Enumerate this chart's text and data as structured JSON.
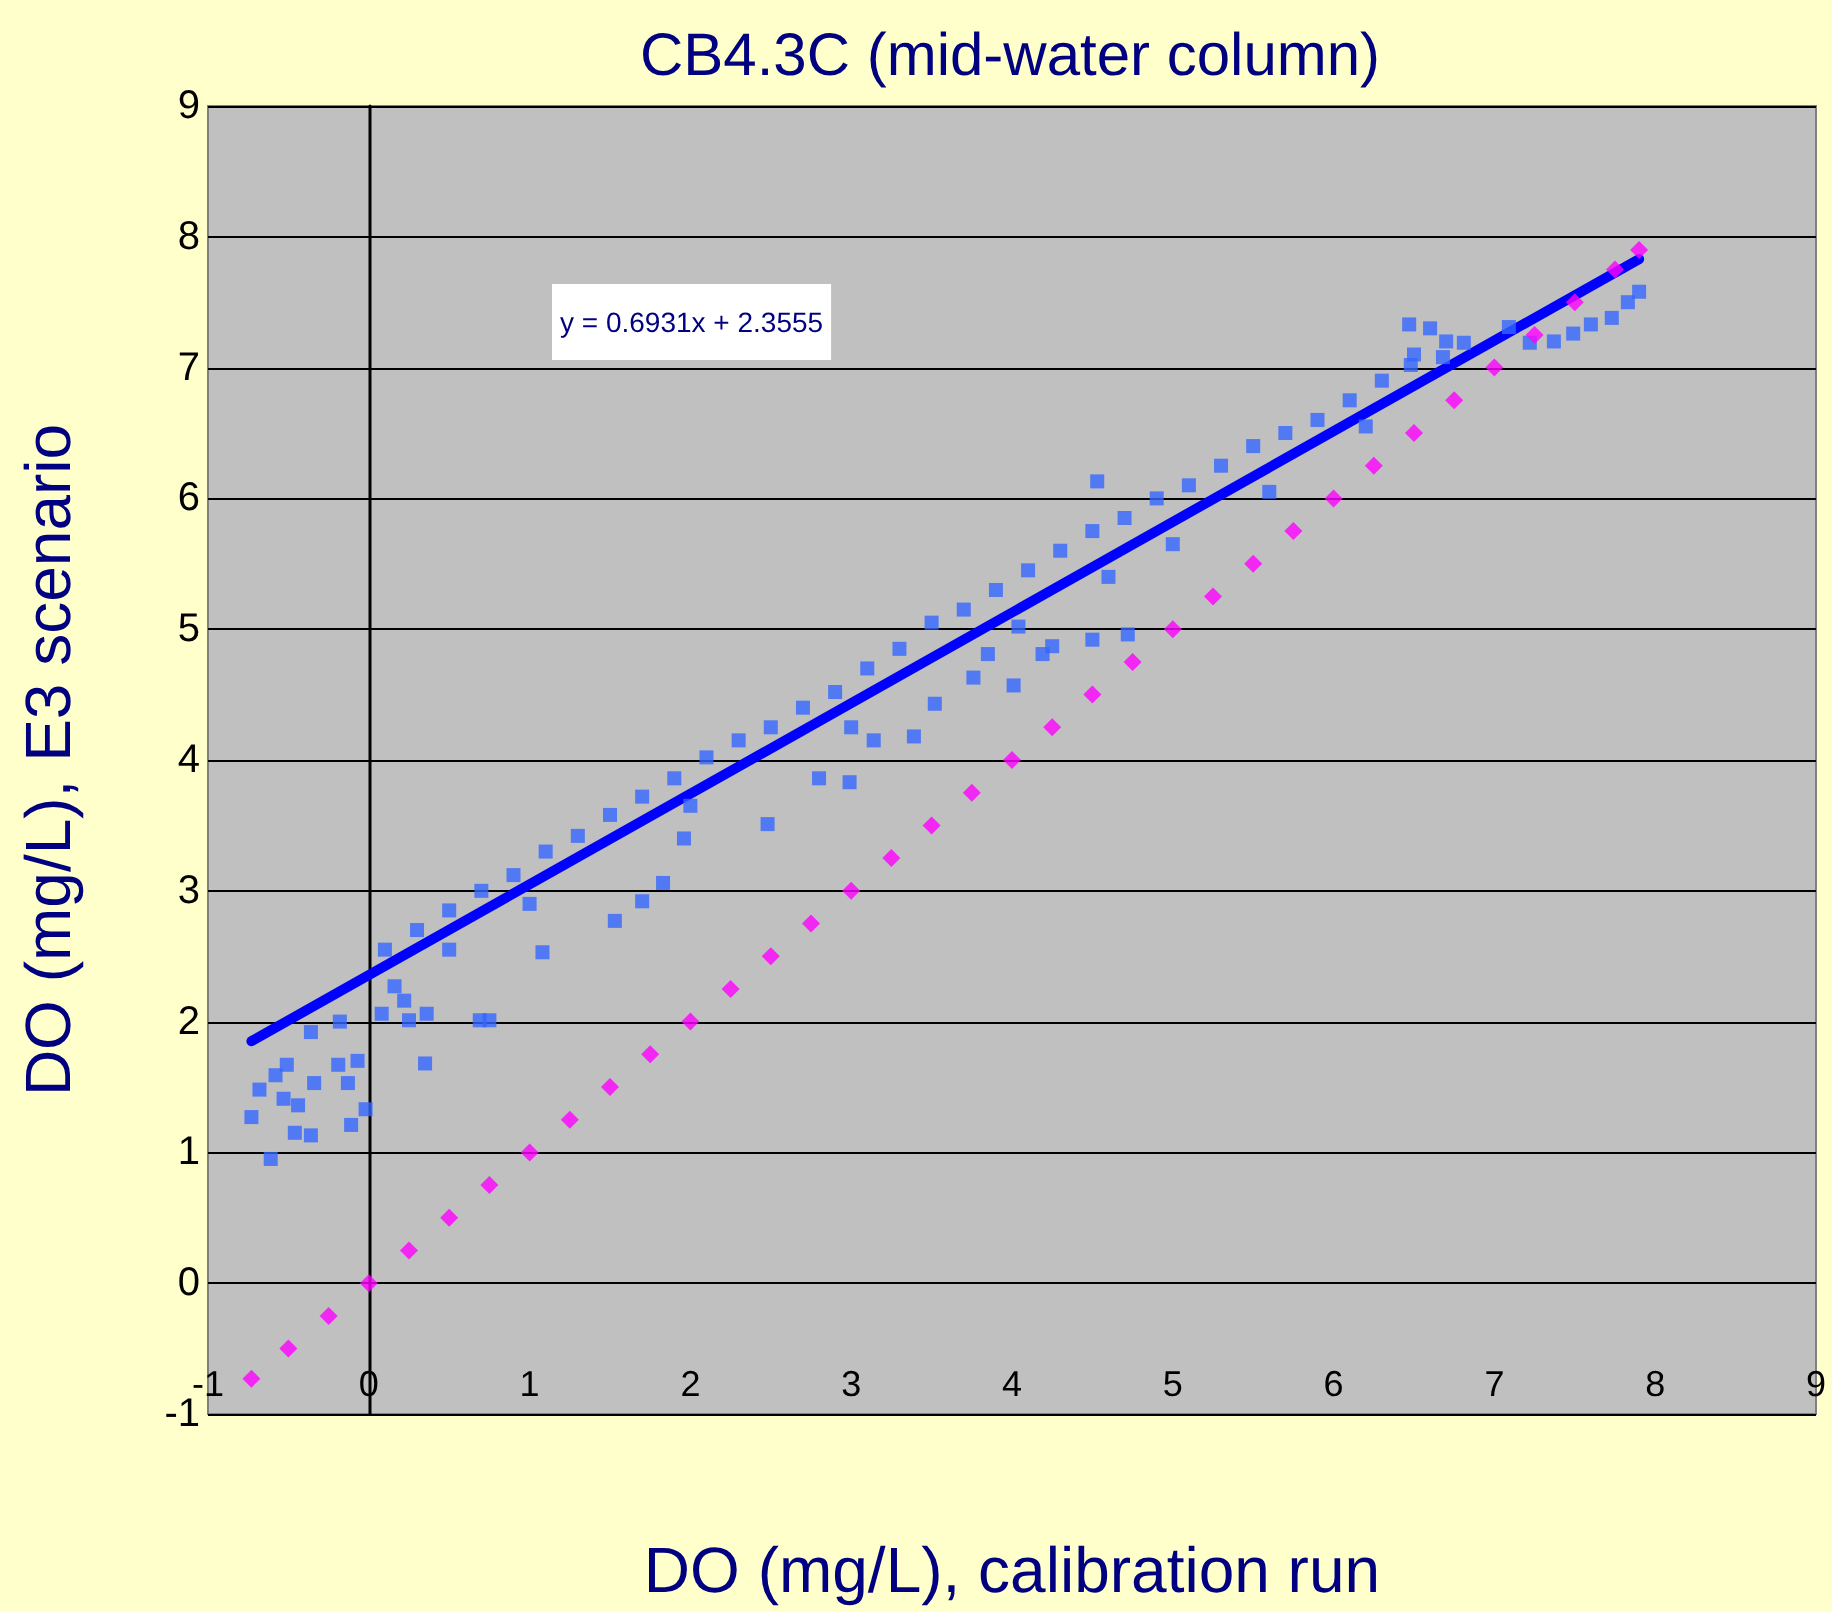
{
  "chart_data": {
    "type": "scatter",
    "title": "CB4.3C (mid-water column)",
    "xlabel": "DO (mg/L), calibration run",
    "ylabel": "DO (mg/L), E3 scenario",
    "annotations": [
      "y = 0.6931x + 2.3555"
    ],
    "xlim": [
      -1,
      9
    ],
    "xticks": [
      -1,
      0,
      1,
      2,
      3,
      4,
      5,
      6,
      7,
      8,
      9
    ],
    "ylim": [
      -1,
      9
    ],
    "yticks": [
      -1,
      0,
      1,
      2,
      3,
      4,
      5,
      6,
      7,
      8,
      9
    ],
    "grid": "y",
    "series": [
      {
        "color": "#3366ff",
        "marker": "square",
        "x": [
          -0.73,
          -0.61,
          -0.68,
          -0.58,
          -0.51,
          -0.53,
          -0.44,
          -0.46,
          -0.36,
          -0.34,
          -0.36,
          -0.19,
          -0.18,
          -0.13,
          -0.11,
          -0.02,
          -0.07,
          0.08,
          0.16,
          0.22,
          0.25,
          0.35,
          0.36,
          0.69,
          0.75,
          1.08,
          1.53,
          1.7,
          1.83,
          1.96,
          2.48,
          2.8,
          2.99,
          3.14,
          3.39,
          3.52,
          3.76,
          3.85,
          4.04,
          4.01,
          4.19,
          4.25,
          4.5,
          4.72,
          7.9,
          7.83,
          7.73,
          7.6,
          7.49,
          7.37,
          7.22,
          7.09,
          6.81,
          6.68,
          6.47,
          6.48,
          0.1,
          0.3,
          0.5,
          0.7,
          0.9,
          1.1,
          1.3,
          1.5,
          1.7,
          1.9,
          2.1,
          2.3,
          2.5,
          2.7,
          2.9,
          3.1,
          3.3,
          3.5,
          3.7,
          3.9,
          4.1,
          4.3,
          4.5,
          4.7,
          4.9,
          5.1,
          5.3,
          5.5,
          5.7,
          5.9,
          6.1,
          6.3,
          6.5,
          6.7,
          2.0,
          3.0,
          4.6,
          5.6,
          6.2,
          5.0,
          1.0,
          0.5,
          4.53,
          6.6
        ],
        "values": [
          1.27,
          0.95,
          1.48,
          1.59,
          1.67,
          1.41,
          1.36,
          1.15,
          1.13,
          1.53,
          1.92,
          1.67,
          2.0,
          1.53,
          1.21,
          1.33,
          1.7,
          2.06,
          2.27,
          2.16,
          2.01,
          1.68,
          2.06,
          2.01,
          2.01,
          2.53,
          2.77,
          2.92,
          3.06,
          3.4,
          3.51,
          3.86,
          3.83,
          4.15,
          4.18,
          4.43,
          4.63,
          4.81,
          5.02,
          4.57,
          4.81,
          4.87,
          4.92,
          4.96,
          7.58,
          7.5,
          7.38,
          7.33,
          7.26,
          7.2,
          7.19,
          7.31,
          7.19,
          7.08,
          7.33,
          7.02,
          2.55,
          2.7,
          2.85,
          3.0,
          3.12,
          3.3,
          3.42,
          3.58,
          3.72,
          3.86,
          4.02,
          4.15,
          4.25,
          4.4,
          4.52,
          4.7,
          4.85,
          5.05,
          5.15,
          5.3,
          5.45,
          5.6,
          5.75,
          5.85,
          6.0,
          6.1,
          6.25,
          6.4,
          6.5,
          6.6,
          6.75,
          6.9,
          7.1,
          7.2,
          3.65,
          4.25,
          5.4,
          6.05,
          6.55,
          5.65,
          2.9,
          2.55,
          6.13,
          7.3
        ]
      },
      {
        "color": "#ff00ff",
        "marker": "diamond",
        "x": [
          -0.73,
          -0.5,
          -0.25,
          0,
          0.25,
          0.5,
          0.75,
          1,
          1.25,
          1.5,
          1.75,
          2,
          2.25,
          2.5,
          2.75,
          3,
          3.25,
          3.5,
          3.75,
          4,
          4.25,
          4.5,
          4.75,
          5,
          5.25,
          5.5,
          5.75,
          6,
          6.25,
          6.5,
          6.75,
          7,
          7.25,
          7.5,
          7.75,
          7.9
        ],
        "values": [
          -0.73,
          -0.5,
          -0.25,
          0,
          0.25,
          0.5,
          0.75,
          1,
          1.25,
          1.5,
          1.75,
          2,
          2.25,
          2.5,
          2.75,
          3,
          3.25,
          3.5,
          3.75,
          4,
          4.25,
          4.5,
          4.75,
          5,
          5.25,
          5.5,
          5.75,
          6,
          6.25,
          6.5,
          6.75,
          7,
          7.25,
          7.5,
          7.75,
          7.9
        ]
      },
      {
        "type": "line",
        "color": "#0000ff",
        "marker": "none",
        "line_style": "solid",
        "x": [
          -0.73,
          7.9
        ],
        "values": [
          1.85,
          7.83
        ]
      }
    ]
  }
}
